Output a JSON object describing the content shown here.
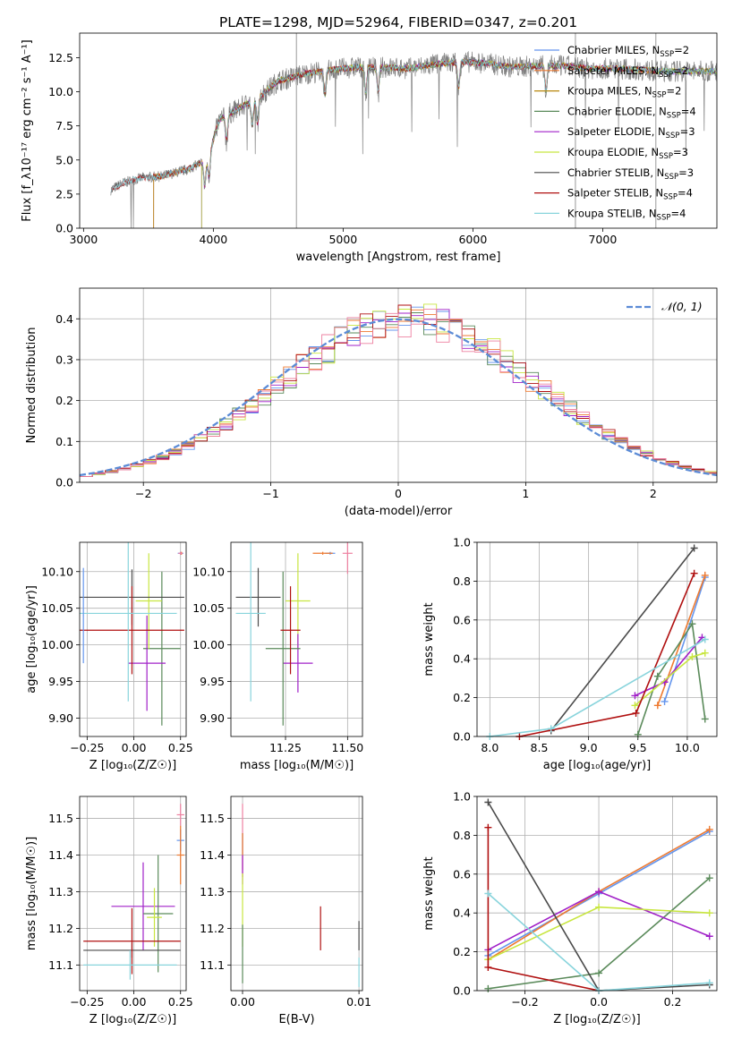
{
  "figure": {
    "title": "PLATE=1298, MJD=52964, FIBERID=0347, z=0.201"
  },
  "colors": {
    "Chabrier MILES": "#6495ed",
    "Salpeter MILES": "#ee7a30",
    "Kroupa MILES": "#b8860b",
    "Chabrier ELODIE": "#5a8a5a",
    "Salpeter ELODIE": "#a020c8",
    "Kroupa ELODIE": "#c8e640",
    "Chabrier STELIB": "#4a4a4a",
    "Salpeter STELIB": "#b01010",
    "Kroupa STELIB": "#88d4dc",
    "extra": "#ee80a0",
    "gaussian": "#5b8bd6",
    "data": "#808080"
  },
  "chart_data": [
    {
      "id": "spectrum",
      "type": "line",
      "xlabel": "wavelength [Angstrom, rest frame]",
      "ylabel": "Flux [f_λ10⁻¹⁷ erg cm⁻² s⁻¹ A⁻¹]",
      "xlim": [
        2970,
        7880
      ],
      "ylim": [
        0,
        14.3
      ],
      "xticks": [
        3000,
        4000,
        5000,
        6000,
        7000
      ],
      "yticks": [
        0.0,
        2.5,
        5.0,
        7.5,
        10.0,
        12.5
      ],
      "ytick_labels": [
        "0.0",
        "2.5",
        "5.0",
        "7.5",
        "10.0",
        "12.5"
      ],
      "legend": [
        "Chabrier MILES, N_SSP=2",
        "Salpeter MILES, N_SSP=2",
        "Kroupa MILES, N_SSP=2",
        "Chabrier ELODIE, N_SSP=4",
        "Salpeter ELODIE, N_SSP=3",
        "Kroupa ELODIE, N_SSP=3",
        "Chabrier STELIB, N_SSP=3",
        "Salpeter STELIB, N_SSP=4",
        "Kroupa STELIB, N_SSP=4"
      ],
      "legend_series": [
        "Chabrier MILES",
        "Salpeter MILES",
        "Kroupa MILES",
        "Chabrier ELODIE",
        "Salpeter ELODIE",
        "Kroupa ELODIE",
        "Chabrier STELIB",
        "Salpeter STELIB",
        "Kroupa STELIB"
      ],
      "legend_placement": "right",
      "continuum_x": [
        3210,
        3300,
        3450,
        3600,
        3800,
        3950,
        4050,
        4200,
        4350,
        4500,
        4700,
        4900,
        5100,
        5300,
        5500,
        5700,
        5900,
        6100,
        6300,
        6500,
        6700,
        6900,
        7100,
        7300,
        7450
      ],
      "continuum_y": [
        2.8,
        3.3,
        3.7,
        3.8,
        4.3,
        5.0,
        8.0,
        8.8,
        9.6,
        10.8,
        11.3,
        11.6,
        11.8,
        11.8,
        11.7,
        12.0,
        12.2,
        12.1,
        11.8,
        11.9,
        11.9,
        11.7,
        11.7,
        11.6,
        11.5
      ]
    },
    {
      "id": "residuals",
      "type": "step",
      "xlabel": "(data-model)/error",
      "ylabel": "Normed distribution",
      "xlim": [
        -2.5,
        2.5
      ],
      "ylim": [
        0,
        0.475
      ],
      "xticks": [
        -2,
        -1,
        0,
        1,
        2
      ],
      "xtick_labels": [
        "−2",
        "−1",
        "0",
        "1",
        "2"
      ],
      "yticks": [
        0.0,
        0.1,
        0.2,
        0.3,
        0.4
      ],
      "ytick_labels": [
        "0.0",
        "0.1",
        "0.2",
        "0.3",
        "0.4"
      ],
      "grid": true,
      "legend": [
        "𝒩(0, 1)"
      ],
      "legend_placement": "top-right",
      "bin_width": 0.1
    },
    {
      "id": "age-vs-Z",
      "type": "errorbar",
      "xlabel": "Z [log₁₀(Z/Z☉)]",
      "ylabel": "age  [log₁₀(age/yr)]",
      "xlim": [
        -0.29,
        0.28
      ],
      "ylim": [
        9.875,
        10.14
      ],
      "xticks": [
        -0.25,
        0.0,
        0.25
      ],
      "xtick_labels": [
        "−0.25",
        "0.00",
        "0.25"
      ],
      "yticks": [
        9.9,
        9.95,
        10.0,
        10.05,
        10.1
      ],
      "ytick_labels": [
        "9.90",
        "9.95",
        "10.00",
        "10.05",
        "10.10"
      ],
      "grid": true,
      "points": [
        {
          "series": "Chabrier MILES",
          "x": 0.25,
          "y": 10.125,
          "xerr": 0.015,
          "yerr": 0.002
        },
        {
          "series": "Salpeter MILES",
          "x": 0.255,
          "y": 10.125,
          "xerr": 0.005,
          "yerr": 0.002
        },
        {
          "series": "extra",
          "x": 0.25,
          "y": 10.125,
          "xerr": 0.012,
          "yerr": 0.002
        },
        {
          "series": "Chabrier ELODIE",
          "x": 0.15,
          "y": 9.995,
          "xerr": 0.1,
          "yerr": 0.105
        },
        {
          "series": "Salpeter ELODIE",
          "x": 0.07,
          "y": 9.975,
          "xerr": 0.1,
          "yerr": 0.065
        },
        {
          "series": "Kroupa ELODIE",
          "x": 0.08,
          "y": 10.06,
          "xerr": 0.07,
          "yerr": 0.065
        },
        {
          "series": "Chabrier STELIB",
          "x": -0.01,
          "y": 10.065,
          "xerr": 0.28,
          "yerr": 0.038
        },
        {
          "series": "Salpeter STELIB",
          "x": -0.01,
          "y": 10.02,
          "xerr": 0.28,
          "yerr": 0.06
        },
        {
          "series": "Kroupa STELIB",
          "x": -0.03,
          "y": 10.043,
          "xerr": 0.26,
          "yerr": 0.12
        },
        {
          "series": "Chabrier MILES",
          "x": -0.27,
          "y": 10.04,
          "xerr": 0.002,
          "yerr": 0.065
        }
      ]
    },
    {
      "id": "age-vs-mass",
      "type": "errorbar",
      "xlabel": "mass [log₁₀(M/M☉)]",
      "ylabel": "",
      "xlim": [
        11.03,
        11.56
      ],
      "ylim": [
        9.875,
        10.14
      ],
      "xticks": [
        11.25,
        11.5
      ],
      "xtick_labels": [
        "11.25",
        "11.50"
      ],
      "yticks": [
        9.9,
        9.95,
        10.0,
        10.05,
        10.1
      ],
      "ytick_labels": [
        "9.90",
        "9.95",
        "10.00",
        "10.05",
        "10.10"
      ],
      "grid": true,
      "points": [
        {
          "series": "Chabrier MILES",
          "x": 11.43,
          "y": 10.125,
          "xerr": 0.02,
          "yerr": 0.002
        },
        {
          "series": "Salpeter MILES",
          "x": 11.4,
          "y": 10.125,
          "xerr": 0.04,
          "yerr": 0.002
        },
        {
          "series": "extra",
          "x": 11.5,
          "y": 10.125,
          "xerr": 0.02,
          "yerr": 0.028
        },
        {
          "series": "Kroupa ELODIE",
          "x": 11.3,
          "y": 10.06,
          "xerr": 0.05,
          "yerr": 0.065
        },
        {
          "series": "Salpeter ELODIE",
          "x": 11.3,
          "y": 9.975,
          "xerr": 0.06,
          "yerr": 0.04
        },
        {
          "series": "Chabrier ELODIE",
          "x": 11.24,
          "y": 9.995,
          "xerr": 0.07,
          "yerr": 0.105
        },
        {
          "series": "Chabrier STELIB",
          "x": 11.14,
          "y": 10.065,
          "xerr": 0.09,
          "yerr": 0.04
        },
        {
          "series": "Salpeter STELIB",
          "x": 11.27,
          "y": 10.02,
          "xerr": 0.04,
          "yerr": 0.06
        },
        {
          "series": "Kroupa STELIB",
          "x": 11.11,
          "y": 10.043,
          "xerr": 0.06,
          "yerr": 0.12
        }
      ]
    },
    {
      "id": "mass-weight-vs-age",
      "type": "line",
      "xlabel": "age  [log₁₀(age/yr)]",
      "ylabel": "mass weight",
      "xlim": [
        7.87,
        10.3
      ],
      "ylim": [
        0,
        1.0
      ],
      "xticks": [
        8.0,
        8.5,
        9.0,
        9.5,
        10.0
      ],
      "xtick_labels": [
        "8.0",
        "8.5",
        "9.0",
        "9.5",
        "10.0"
      ],
      "yticks": [
        0.0,
        0.2,
        0.4,
        0.6,
        0.8,
        1.0
      ],
      "ytick_labels": [
        "0.0",
        "0.2",
        "0.4",
        "0.6",
        "0.8",
        "1.0"
      ],
      "grid": true,
      "series": [
        {
          "key": "Chabrier MILES",
          "x": [
            9.77,
            10.18
          ],
          "y": [
            0.18,
            0.82
          ]
        },
        {
          "key": "Salpeter MILES",
          "x": [
            9.7,
            10.18
          ],
          "y": [
            0.16,
            0.83
          ]
        },
        {
          "key": "Chabrier ELODIE",
          "x": [
            9.5,
            9.7,
            10.05,
            10.18
          ],
          "y": [
            0.01,
            0.31,
            0.58,
            0.09
          ]
        },
        {
          "key": "Salpeter ELODIE",
          "x": [
            9.47,
            9.77,
            10.15
          ],
          "y": [
            0.21,
            0.28,
            0.51
          ]
        },
        {
          "key": "Kroupa ELODIE",
          "x": [
            9.47,
            10.05,
            10.18
          ],
          "y": [
            0.16,
            0.41,
            0.43
          ]
        },
        {
          "key": "Chabrier STELIB",
          "x": [
            8.62,
            10.07
          ],
          "y": [
            0.03,
            0.97
          ]
        },
        {
          "key": "Salpeter STELIB",
          "x": [
            8.3,
            9.48,
            10.07
          ],
          "y": [
            0.0,
            0.12,
            0.84
          ]
        },
        {
          "key": "Kroupa STELIB",
          "x": [
            8.0,
            8.62,
            10.18
          ],
          "y": [
            0.0,
            0.04,
            0.5
          ]
        }
      ]
    },
    {
      "id": "mass-vs-Z",
      "type": "errorbar",
      "xlabel": "Z [log₁₀(Z/Z☉)]",
      "ylabel": "mass [log₁₀(M/M☉)]",
      "xlim": [
        -0.29,
        0.28
      ],
      "ylim": [
        11.03,
        11.56
      ],
      "xticks": [
        -0.25,
        0.0,
        0.25
      ],
      "xtick_labels": [
        "−0.25",
        "0.00",
        "0.25"
      ],
      "yticks": [
        11.1,
        11.2,
        11.3,
        11.4,
        11.5
      ],
      "ytick_labels": [
        "11.1",
        "11.2",
        "11.3",
        "11.4",
        "11.5"
      ],
      "grid": true,
      "points": [
        {
          "series": "extra",
          "x": 0.25,
          "y": 11.51,
          "xerr": 0.02,
          "yerr": 0.03
        },
        {
          "series": "Chabrier MILES",
          "x": 0.25,
          "y": 11.44,
          "xerr": 0.02,
          "yerr": 0.03
        },
        {
          "series": "Salpeter MILES",
          "x": 0.25,
          "y": 11.4,
          "xerr": 0.02,
          "yerr": 0.08
        },
        {
          "series": "Salpeter ELODIE",
          "x": 0.05,
          "y": 11.26,
          "xerr": 0.17,
          "yerr": 0.12
        },
        {
          "series": "Chabrier ELODIE",
          "x": 0.13,
          "y": 11.24,
          "xerr": 0.08,
          "yerr": 0.16
        },
        {
          "series": "Kroupa ELODIE",
          "x": 0.11,
          "y": 11.23,
          "xerr": 0.04,
          "yerr": 0.08
        },
        {
          "series": "Chabrier STELIB",
          "x": -0.01,
          "y": 11.14,
          "xerr": 0.26,
          "yerr": 0.02
        },
        {
          "series": "Salpeter STELIB",
          "x": -0.01,
          "y": 11.165,
          "xerr": 0.26,
          "yerr": 0.09
        },
        {
          "series": "Kroupa STELIB",
          "x": -0.02,
          "y": 11.1,
          "xerr": 0.25,
          "yerr": 0.04
        }
      ]
    },
    {
      "id": "mass-vs-EBV",
      "type": "errorbar",
      "xlabel": "E(B-V)",
      "ylabel": "",
      "xlim": [
        -0.001,
        0.0103
      ],
      "ylim": [
        11.03,
        11.56
      ],
      "xticks": [
        0.0,
        0.01
      ],
      "xtick_labels": [
        "0.00",
        "0.01"
      ],
      "yticks": [
        11.1,
        11.2,
        11.3,
        11.4,
        11.5
      ],
      "ytick_labels": [
        "11.1",
        "11.2",
        "11.3",
        "11.4",
        "11.5"
      ],
      "grid": true,
      "points": [
        {
          "series": "extra",
          "x": 0.0,
          "y": 11.45,
          "xerr": 0.0,
          "yerr": 0.09
        },
        {
          "series": "Chabrier MILES",
          "x": 0.0,
          "y": 11.43,
          "xerr": 0.0,
          "yerr": 0.03
        },
        {
          "series": "Salpeter MILES",
          "x": 0.0,
          "y": 11.4,
          "xerr": 0.0,
          "yerr": 0.06
        },
        {
          "series": "Salpeter ELODIE",
          "x": 0.0,
          "y": 11.36,
          "xerr": 0.0,
          "yerr": 0.04
        },
        {
          "series": "Kroupa ELODIE",
          "x": 0.0,
          "y": 11.25,
          "xerr": 0.0,
          "yerr": 0.1
        },
        {
          "series": "Chabrier ELODIE",
          "x": 0.0,
          "y": 11.13,
          "xerr": 0.0,
          "yerr": 0.08
        },
        {
          "series": "Salpeter STELIB",
          "x": 0.0067,
          "y": 11.2,
          "xerr": 0.0,
          "yerr": 0.06
        },
        {
          "series": "Chabrier STELIB",
          "x": 0.01,
          "y": 11.18,
          "xerr": 0.0,
          "yerr": 0.04
        },
        {
          "series": "Kroupa STELIB",
          "x": 0.01,
          "y": 11.08,
          "xerr": 0.0,
          "yerr": 0.04
        }
      ]
    },
    {
      "id": "mass-weight-vs-Z",
      "type": "line",
      "xlabel": "Z [log₁₀(Z/Z☉)]",
      "ylabel": "mass weight",
      "xlim": [
        -0.33,
        0.32
      ],
      "ylim": [
        0,
        1.0
      ],
      "xticks": [
        -0.2,
        0.0,
        0.2
      ],
      "xtick_labels": [
        "−0.2",
        "0.0",
        "0.2"
      ],
      "yticks": [
        0.0,
        0.2,
        0.4,
        0.6,
        0.8,
        1.0
      ],
      "ytick_labels": [
        "0.0",
        "0.2",
        "0.4",
        "0.6",
        "0.8",
        "1.0"
      ],
      "grid": true,
      "series": [
        {
          "key": "Chabrier MILES",
          "x": [
            -0.3,
            0.0,
            0.3
          ],
          "y": [
            0.18,
            0.5,
            0.82
          ]
        },
        {
          "key": "Salpeter MILES",
          "x": [
            -0.3,
            0.0,
            0.3
          ],
          "y": [
            0.16,
            0.51,
            0.83
          ]
        },
        {
          "key": "Chabrier ELODIE",
          "x": [
            -0.3,
            0.0,
            0.3
          ],
          "y": [
            0.01,
            0.09,
            0.58
          ]
        },
        {
          "key": "Salpeter ELODIE",
          "x": [
            -0.3,
            0.0,
            0.3
          ],
          "y": [
            0.21,
            0.51,
            0.28
          ]
        },
        {
          "key": "Kroupa ELODIE",
          "x": [
            -0.3,
            0.0,
            0.3
          ],
          "y": [
            0.16,
            0.43,
            0.4
          ]
        },
        {
          "key": "Chabrier STELIB",
          "x": [
            -0.3,
            0.0,
            0.3
          ],
          "y": [
            0.97,
            0.0,
            0.03
          ]
        },
        {
          "key": "Salpeter STELIB",
          "x": [
            -0.3,
            -0.3,
            0.0
          ],
          "y": [
            0.84,
            0.12,
            0.0
          ]
        },
        {
          "key": "Kroupa STELIB",
          "x": [
            -0.3,
            0.0,
            0.3
          ],
          "y": [
            0.5,
            0.0,
            0.04
          ]
        }
      ]
    }
  ]
}
